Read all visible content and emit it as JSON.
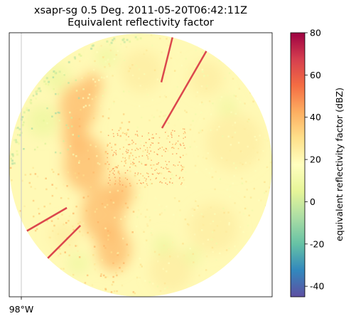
{
  "chart_data": {
    "type": "heatmap",
    "title": "xsapr-sg 0.5 Deg. 2011-05-20T06:42:11Z",
    "subtitle": "Equivalent reflectivity factor",
    "xtick_labels": [
      "98°W"
    ],
    "colorbar": {
      "label": "equivalent reflectivity factor (dBZ)",
      "vmin": -45,
      "vmax": 80,
      "ticks": [
        -40,
        -20,
        0,
        20,
        40,
        60,
        80
      ],
      "colormap": "Spectral_r",
      "stops": [
        "#5e4fa2",
        "#3288bd",
        "#66c2a5",
        "#abdda4",
        "#e6f598",
        "#ffffbf",
        "#fee08b",
        "#fdae61",
        "#f46d43",
        "#d53e4f",
        "#9e0142"
      ]
    },
    "domain": "radar PPI sweep clipped to a circular range ring",
    "features": [
      {
        "kind": "broad echo field",
        "typical_dBZ": 20
      },
      {
        "kind": "intense cores west of radar",
        "typical_dBZ": 40
      },
      {
        "kind": "weak scattered echoes northwest",
        "typical_dBZ": -10
      },
      {
        "kind": "blocked / spike radials",
        "typical_dBZ": 65,
        "count": 4
      }
    ],
    "grid": false
  }
}
